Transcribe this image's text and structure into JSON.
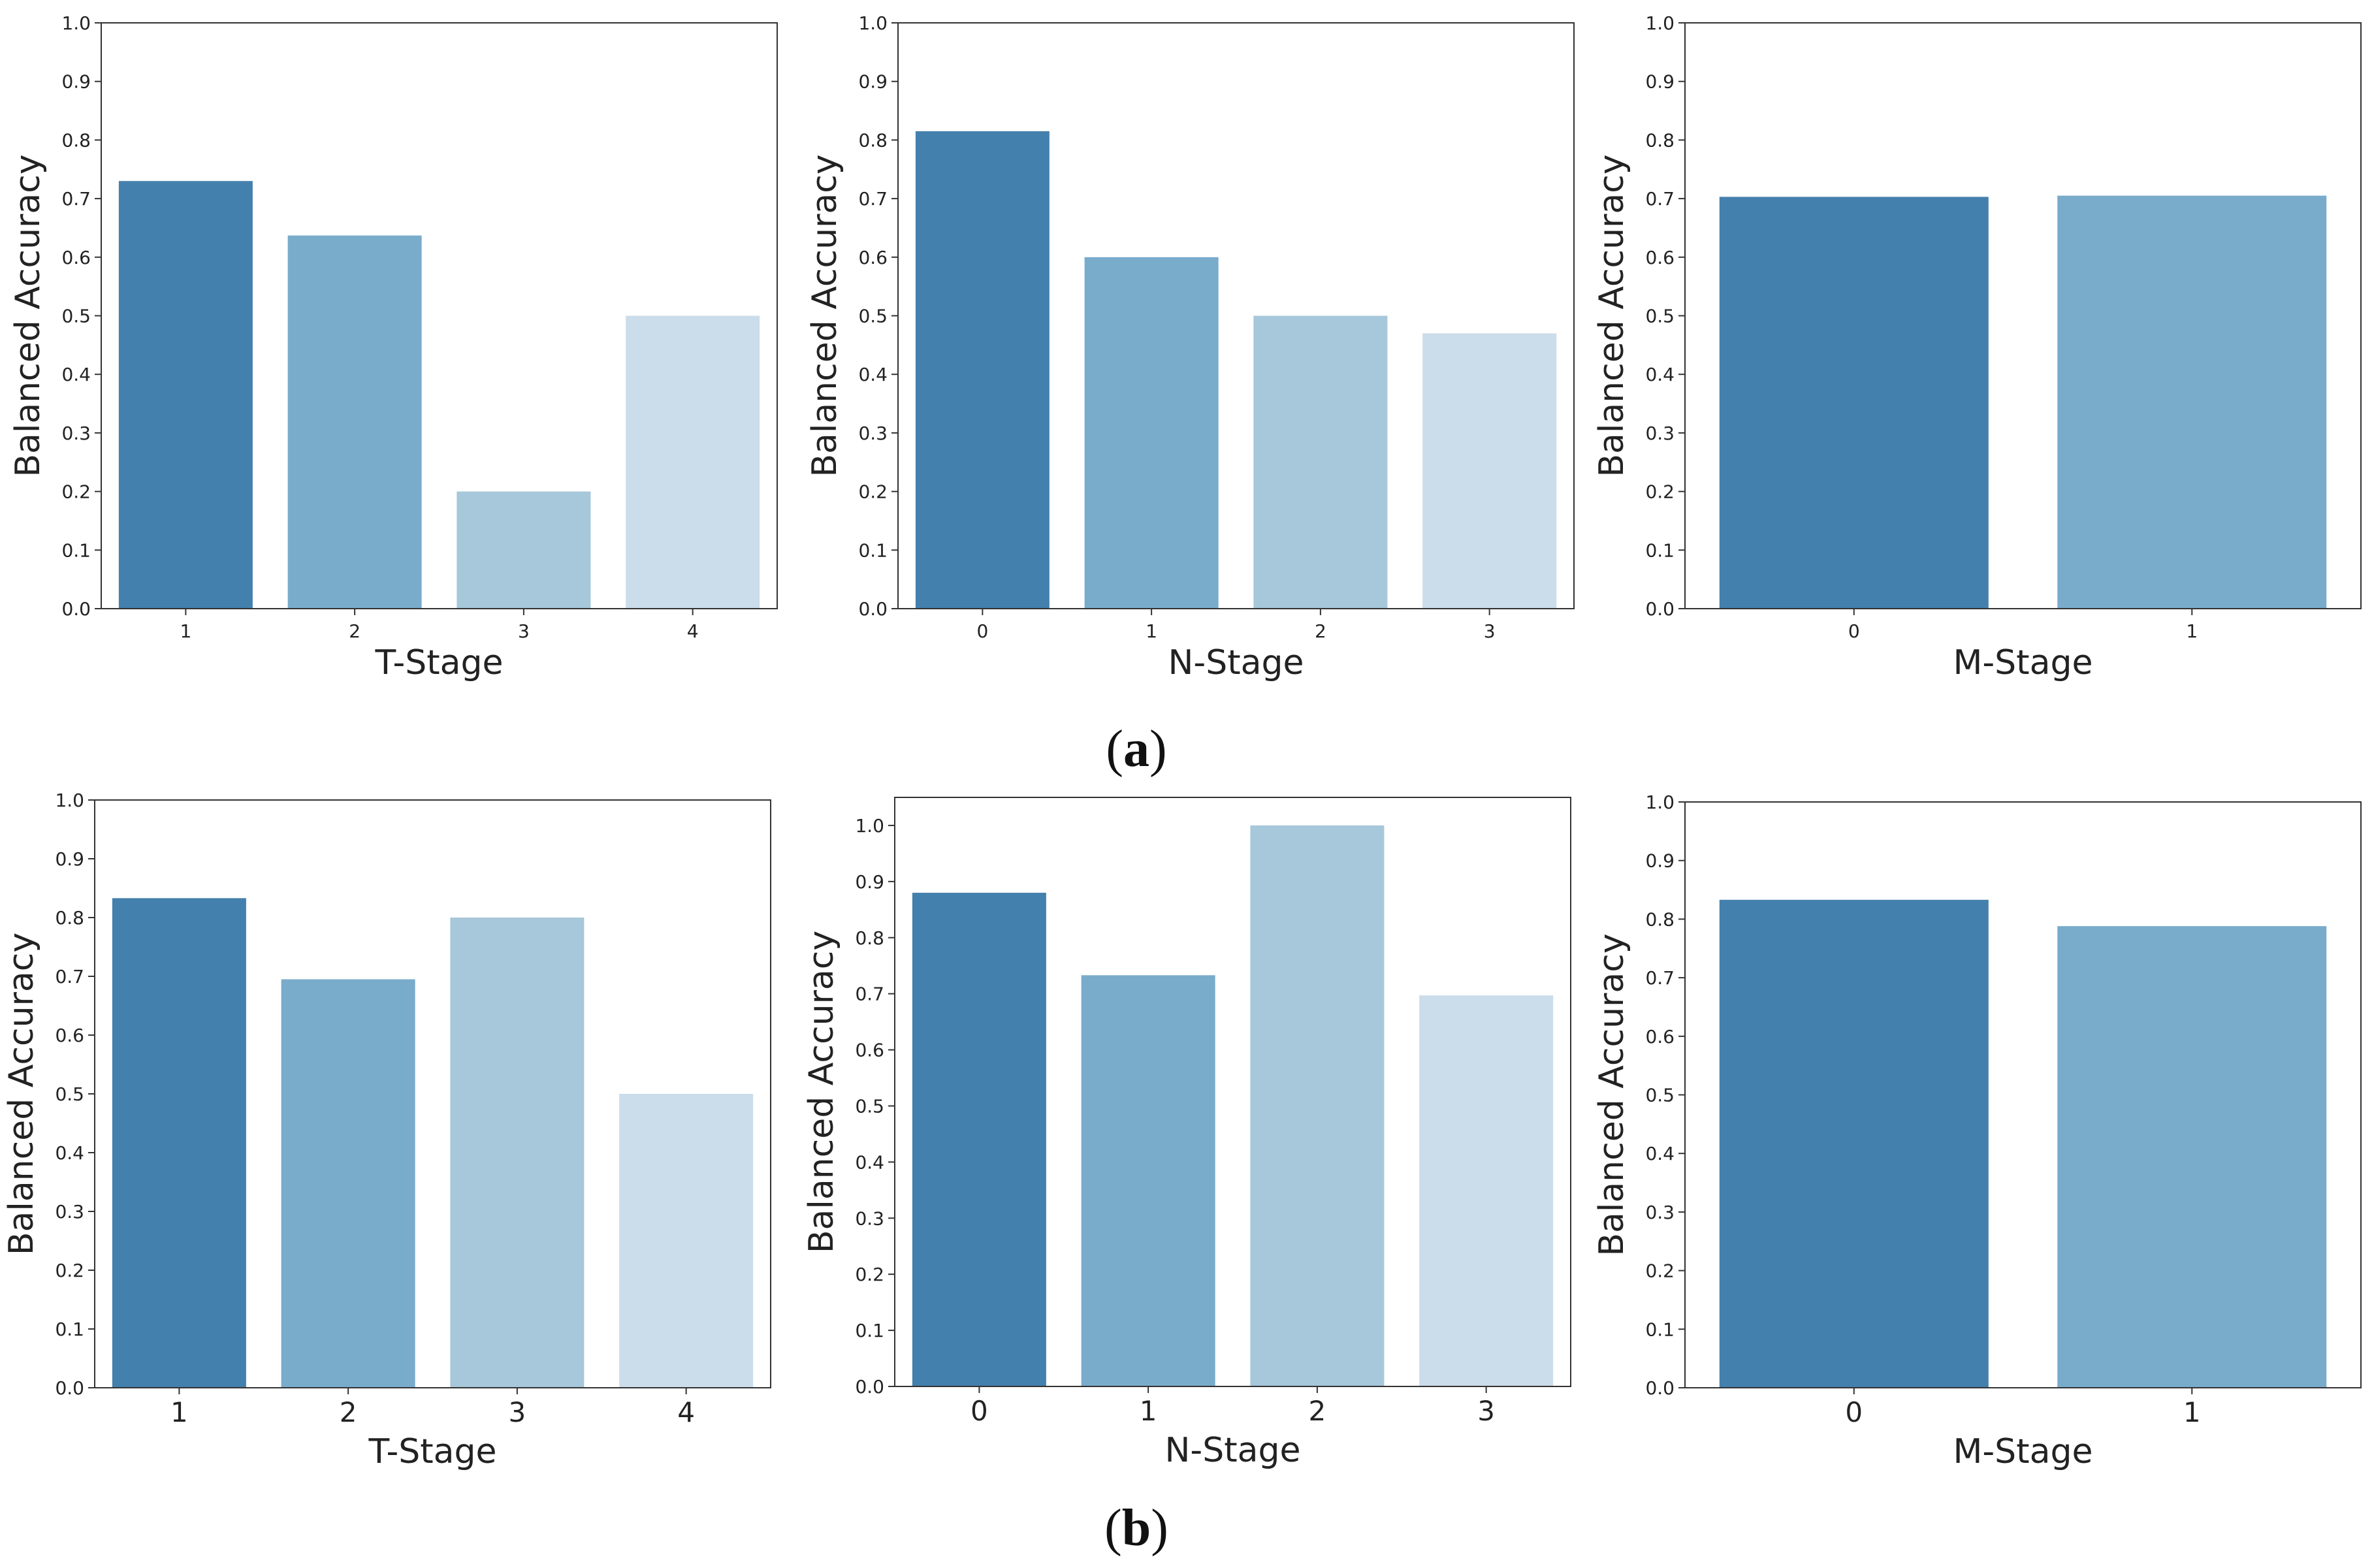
{
  "colors": [
    "#4480ad",
    "#79abcb",
    "#a7c7da",
    "#cbdcea"
  ],
  "figure": {
    "caption_a": {
      "open": "(",
      "letter": "a",
      "close": ")"
    },
    "caption_b": {
      "open": "(",
      "letter": "b",
      "close": ")"
    }
  },
  "chart_data": [
    {
      "id": "a-t",
      "row": "a",
      "type": "bar",
      "title": "",
      "xlabel": "T-Stage",
      "ylabel": "Balanced Accuracy",
      "categories": [
        "1",
        "2",
        "3",
        "4"
      ],
      "values": [
        0.73,
        0.637,
        0.2,
        0.5
      ],
      "ylim": [
        0,
        1.0
      ],
      "yticks": [
        "0.0",
        "0.1",
        "0.2",
        "0.3",
        "0.4",
        "0.5",
        "0.6",
        "0.7",
        "0.8",
        "0.9",
        "1.0"
      ],
      "grid": false
    },
    {
      "id": "a-n",
      "row": "a",
      "type": "bar",
      "title": "",
      "xlabel": "N-Stage",
      "ylabel": "Balanced Accuracy",
      "categories": [
        "0",
        "1",
        "2",
        "3"
      ],
      "values": [
        0.815,
        0.6,
        0.5,
        0.47
      ],
      "ylim": [
        0,
        1.0
      ],
      "yticks": [
        "0.0",
        "0.1",
        "0.2",
        "0.3",
        "0.4",
        "0.5",
        "0.6",
        "0.7",
        "0.8",
        "0.9",
        "1.0"
      ],
      "grid": false
    },
    {
      "id": "a-m",
      "row": "a",
      "type": "bar",
      "title": "",
      "xlabel": "M-Stage",
      "ylabel": "Balanced Accuracy",
      "categories": [
        "0",
        "1"
      ],
      "values": [
        0.703,
        0.705
      ],
      "ylim": [
        0,
        1.0
      ],
      "yticks": [
        "0.0",
        "0.1",
        "0.2",
        "0.3",
        "0.4",
        "0.5",
        "0.6",
        "0.7",
        "0.8",
        "0.9",
        "1.0"
      ],
      "grid": false
    },
    {
      "id": "b-t",
      "row": "b",
      "type": "bar",
      "title": "",
      "xlabel": "T-Stage",
      "ylabel": "Balanced Accuracy",
      "categories": [
        "1",
        "2",
        "3",
        "4"
      ],
      "values": [
        0.833,
        0.695,
        0.8,
        0.5
      ],
      "ylim": [
        0,
        1.0
      ],
      "yticks": [
        "0.0",
        "0.1",
        "0.2",
        "0.3",
        "0.4",
        "0.5",
        "0.6",
        "0.7",
        "0.8",
        "0.9",
        "1.0"
      ],
      "grid": false
    },
    {
      "id": "b-n",
      "row": "b",
      "type": "bar",
      "title": "",
      "xlabel": "N-Stage",
      "ylabel": "Balanced Accuracy",
      "categories": [
        "0",
        "1",
        "2",
        "3"
      ],
      "values": [
        0.88,
        0.733,
        1.0,
        0.697
      ],
      "ylim": [
        0,
        1.05
      ],
      "yticks": [
        "0.0",
        "0.1",
        "0.2",
        "0.3",
        "0.4",
        "0.5",
        "0.6",
        "0.7",
        "0.8",
        "0.9",
        "1.0"
      ],
      "grid": false
    },
    {
      "id": "b-m",
      "row": "b",
      "type": "bar",
      "title": "",
      "xlabel": "M-Stage",
      "ylabel": "Balanced Accuracy",
      "categories": [
        "0",
        "1"
      ],
      "values": [
        0.833,
        0.788
      ],
      "ylim": [
        0,
        1.0
      ],
      "yticks": [
        "0.0",
        "0.1",
        "0.2",
        "0.3",
        "0.4",
        "0.5",
        "0.6",
        "0.7",
        "0.8",
        "0.9",
        "1.0"
      ],
      "grid": false
    }
  ]
}
